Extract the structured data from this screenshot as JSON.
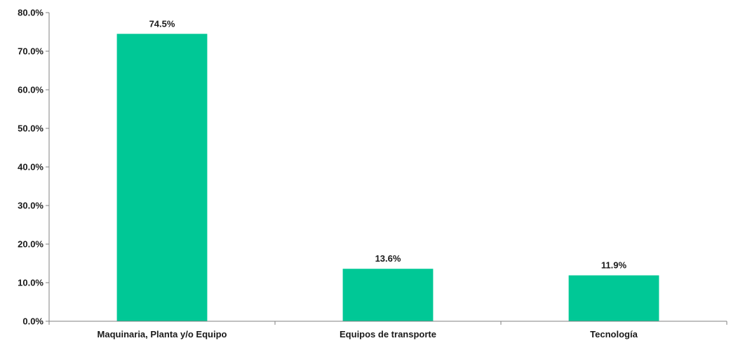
{
  "chart_data": {
    "type": "bar",
    "categories": [
      "Maquinaria, Planta y/o Equipo",
      "Equipos de transporte",
      "Tecnología"
    ],
    "values": [
      74.5,
      13.6,
      11.9
    ],
    "data_labels": [
      "74.5%",
      "13.6%",
      "11.9%"
    ],
    "y_ticks": [
      0,
      10,
      20,
      30,
      40,
      50,
      60,
      70,
      80
    ],
    "y_tick_labels": [
      "0.0%",
      "10.0%",
      "20.0%",
      "30.0%",
      "40.0%",
      "50.0%",
      "60.0%",
      "70.0%",
      "80.0%"
    ],
    "ylim": [
      0,
      80
    ],
    "grid": false,
    "legend": "none",
    "bar_color": "#00c896"
  }
}
